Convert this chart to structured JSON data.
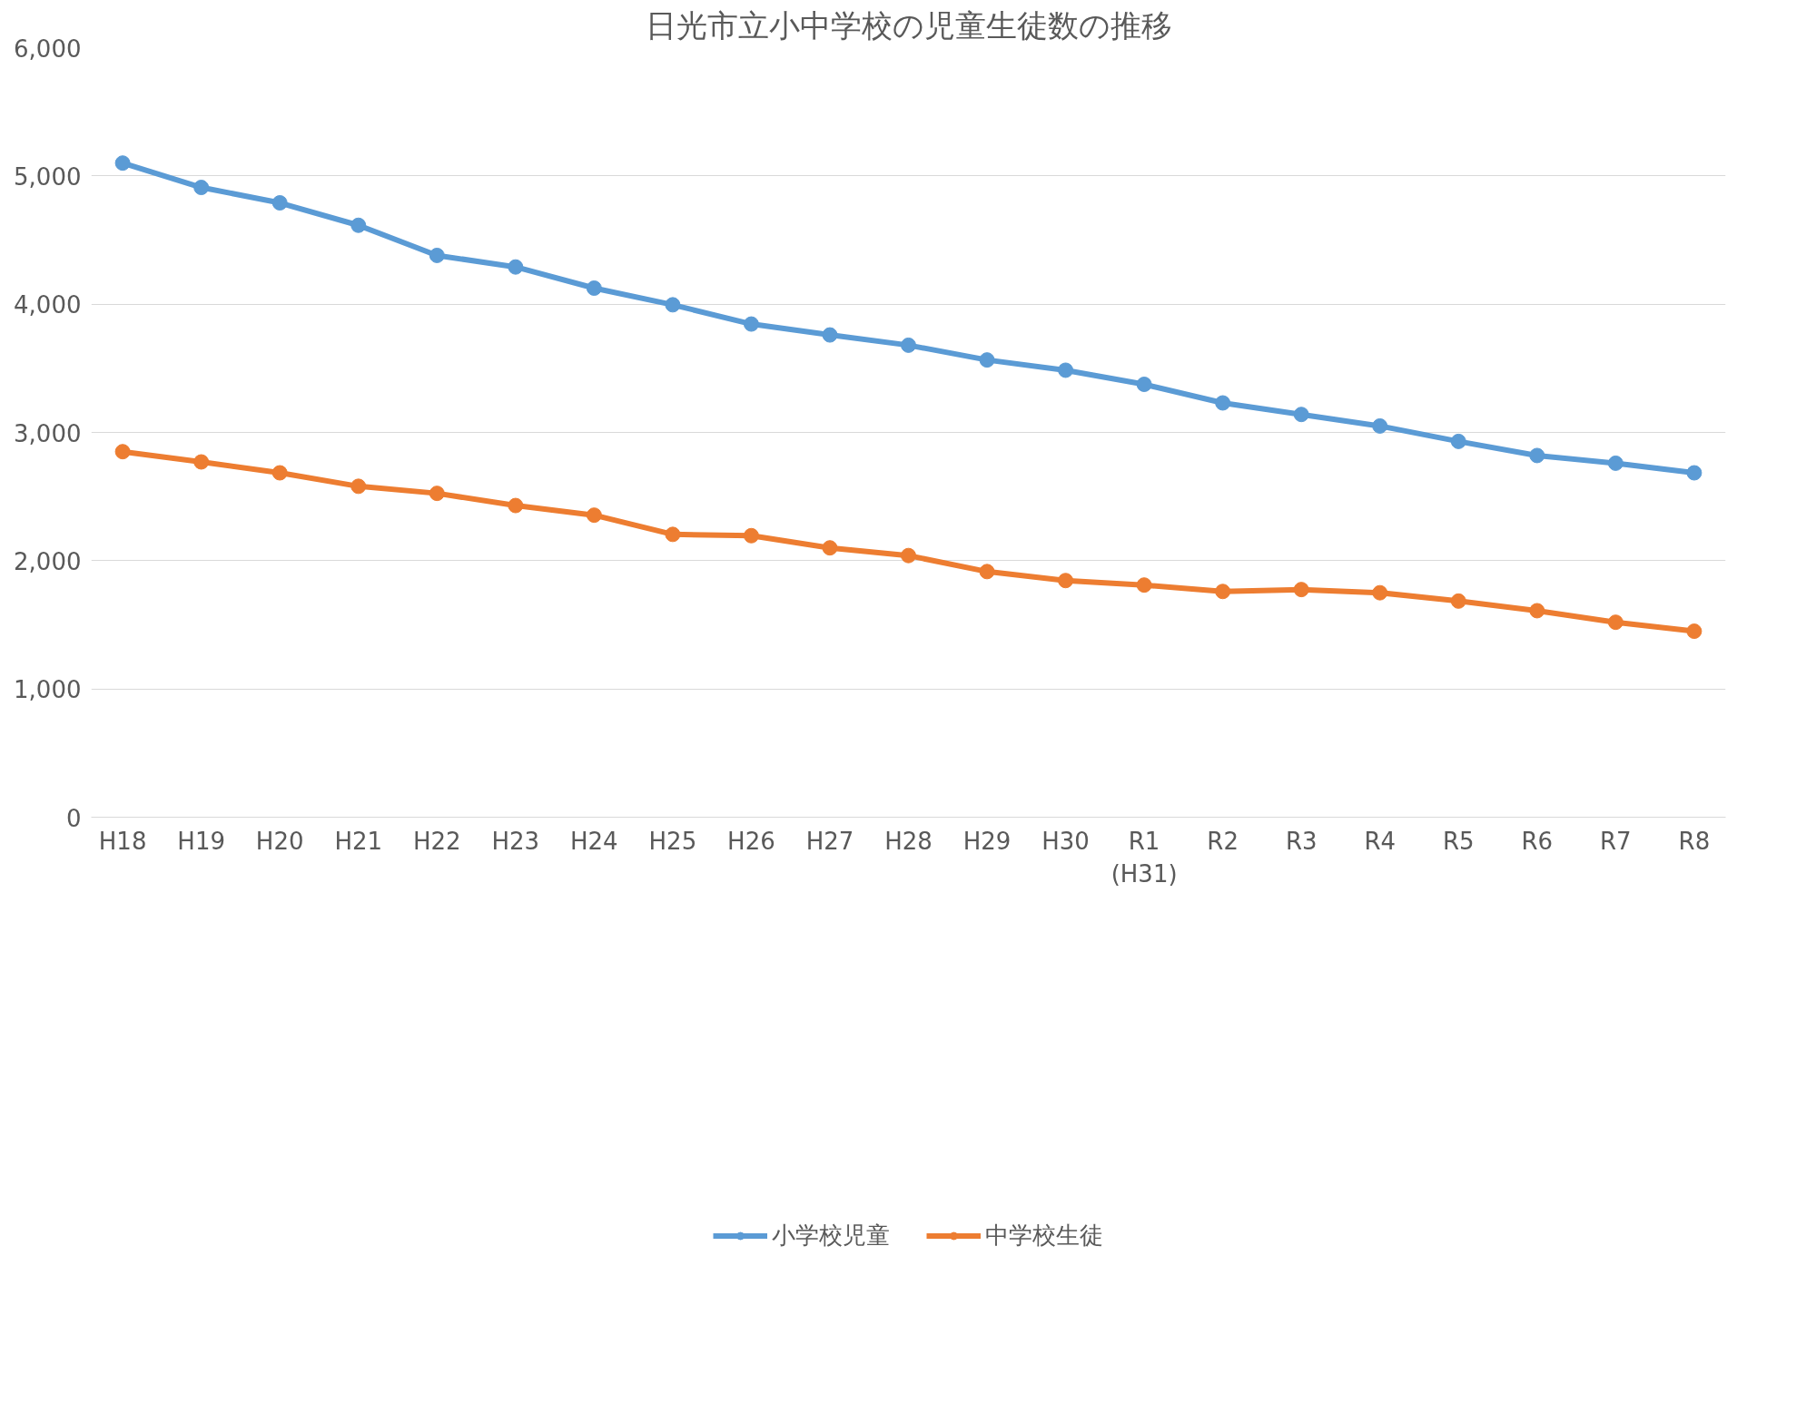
{
  "chart_data": {
    "type": "line",
    "title": "日光市立小中学校の児童生徒数の推移",
    "categories": [
      "H18",
      "H19",
      "H20",
      "H21",
      "H22",
      "H23",
      "H24",
      "H25",
      "H26",
      "H27",
      "H28",
      "H29",
      "H30",
      "R1\n(H31)",
      "R2",
      "R3",
      "R4",
      "R5",
      "R6",
      "R7",
      "R8"
    ],
    "series": [
      {
        "name": "小学校児童",
        "color": "#5b9bd5",
        "values": [
          5100,
          4910,
          4790,
          4615,
          4380,
          4290,
          4125,
          3995,
          3845,
          3760,
          3680,
          3565,
          3485,
          3375,
          3230,
          3140,
          3050,
          2930,
          2820,
          2760,
          2685
        ]
      },
      {
        "name": "中学校生徒",
        "color": "#ed7d31",
        "values": [
          2850,
          2770,
          2685,
          2580,
          2525,
          2430,
          2355,
          2205,
          2195,
          2100,
          2040,
          1915,
          1845,
          1810,
          1760,
          1775,
          1750,
          1685,
          1610,
          1520,
          1450
        ]
      }
    ],
    "ylim": [
      0,
      6000
    ],
    "yticks": [
      {
        "value": 0,
        "label": "0"
      },
      {
        "value": 1000,
        "label": "1,000"
      },
      {
        "value": 2000,
        "label": "2,000"
      },
      {
        "value": 3000,
        "label": "3,000"
      },
      {
        "value": 4000,
        "label": "4,000"
      },
      {
        "value": 5000,
        "label": "5,000"
      },
      {
        "value": 6000,
        "label": "6,000"
      }
    ],
    "grid": "y",
    "legend": "bottom",
    "marker": "circle",
    "line_style": "solid"
  }
}
